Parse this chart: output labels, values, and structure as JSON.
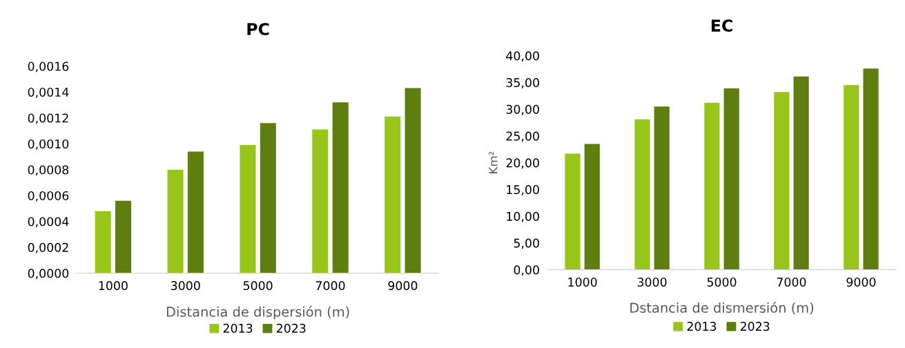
{
  "chart_data": [
    {
      "type": "bar",
      "title": "PC",
      "xlabel": "Distancia de dispersión (m)",
      "categories": [
        "1000",
        "3000",
        "5000",
        "7000",
        "9000"
      ],
      "series": [
        {
          "name": "2013",
          "color": "#97c61a",
          "values": [
            0.00048,
            0.0008,
            0.00099,
            0.00111,
            0.00121
          ]
        },
        {
          "name": "2023",
          "color": "#5e7e10",
          "values": [
            0.00056,
            0.00094,
            0.00116,
            0.00132,
            0.00143
          ]
        }
      ],
      "ylim": [
        0,
        0.0016
      ],
      "yticks": [
        {
          "value": 0,
          "label": "0,0000"
        },
        {
          "value": 0.0002,
          "label": "0,0002"
        },
        {
          "value": 0.0004,
          "label": "0,0004"
        },
        {
          "value": 0.0006,
          "label": "0,0006"
        },
        {
          "value": 0.0008,
          "label": "0,0008"
        },
        {
          "value": 0.001,
          "label": "0,0010"
        },
        {
          "value": 0.0012,
          "label": "0,0012"
        },
        {
          "value": 0.0014,
          "label": "0,0014"
        },
        {
          "value": 0.0016,
          "label": "0,0016"
        }
      ],
      "grid": false,
      "legend": "bottom"
    },
    {
      "type": "bar",
      "title": "EC",
      "xlabel": "Dstancia de dismersión (m)",
      "ylabel": "Km²",
      "categories": [
        "1000",
        "3000",
        "5000",
        "7000",
        "9000"
      ],
      "series": [
        {
          "name": "2013",
          "color": "#97c61a",
          "values": [
            21.7,
            28.1,
            31.2,
            33.2,
            34.5
          ]
        },
        {
          "name": "2023",
          "color": "#5e7e10",
          "values": [
            23.5,
            30.5,
            33.9,
            36.1,
            37.6
          ]
        }
      ],
      "ylim": [
        0,
        40
      ],
      "yticks": [
        {
          "value": 0,
          "label": "0,00"
        },
        {
          "value": 5,
          "label": "5,00"
        },
        {
          "value": 10,
          "label": "10,00"
        },
        {
          "value": 15,
          "label": "15,00"
        },
        {
          "value": 20,
          "label": "20,00"
        },
        {
          "value": 25,
          "label": "25,00"
        },
        {
          "value": 30,
          "label": "30,00"
        },
        {
          "value": 35,
          "label": "35,00"
        },
        {
          "value": 40,
          "label": "40,00"
        }
      ],
      "grid": false,
      "legend": "bottom"
    }
  ]
}
